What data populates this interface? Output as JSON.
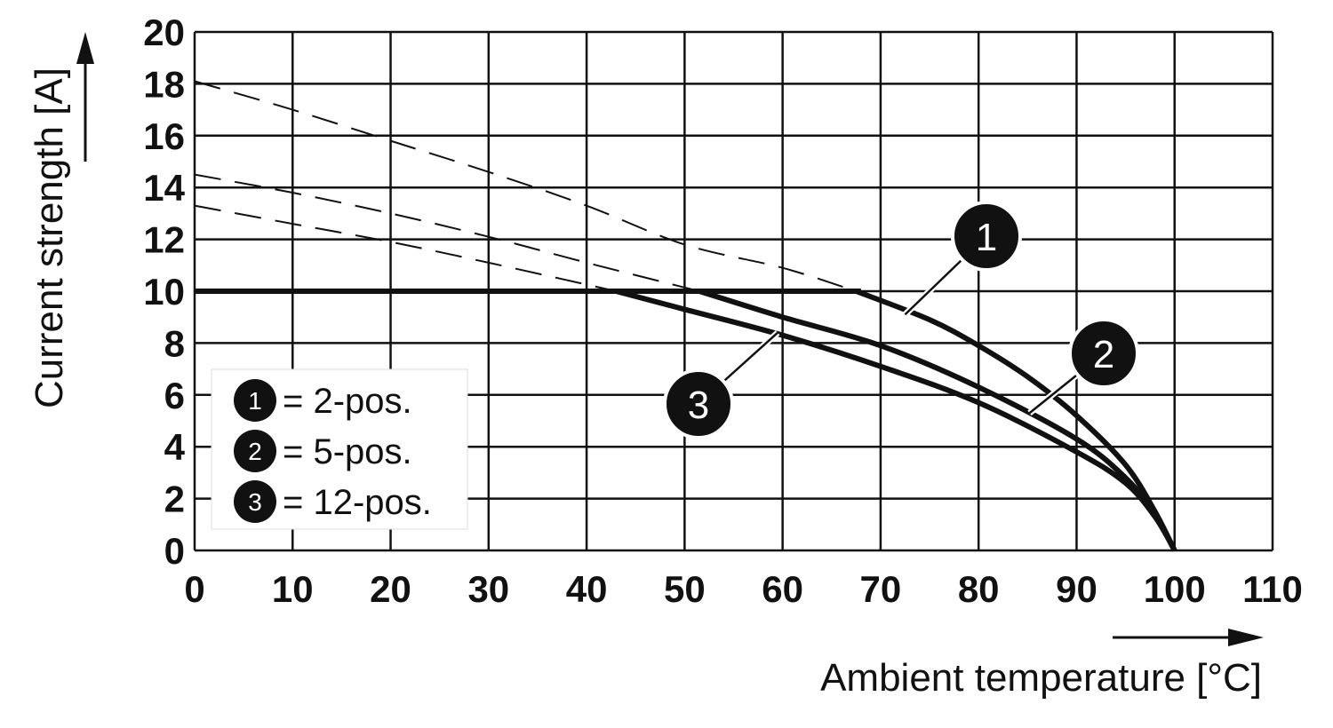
{
  "chart_data": {
    "type": "line",
    "title": "",
    "xlabel": "Ambient temperature [°C]",
    "ylabel": "Current strength [A]",
    "xlim": [
      0,
      110
    ],
    "ylim": [
      0,
      20
    ],
    "x_ticks": [
      "0",
      "10",
      "20",
      "30",
      "40",
      "50",
      "60",
      "70",
      "80",
      "90",
      "100",
      "110"
    ],
    "y_ticks": [
      "0",
      "2",
      "4",
      "6",
      "8",
      "10",
      "12",
      "14",
      "16",
      "18",
      "20"
    ],
    "grid": true,
    "legend_position": "bottom-left",
    "limit_line": {
      "y": 10
    },
    "series": [
      {
        "marker": "1",
        "name": "= 2-pos.",
        "points": [
          [
            0,
            18.1
          ],
          [
            10,
            17.0
          ],
          [
            20,
            15.8
          ],
          [
            30,
            14.6
          ],
          [
            40,
            13.3
          ],
          [
            50,
            11.8
          ],
          [
            60,
            10.9
          ],
          [
            67.5,
            10.0
          ],
          [
            75,
            8.9
          ],
          [
            80,
            7.9
          ],
          [
            85,
            6.7
          ],
          [
            90,
            5.2
          ],
          [
            95,
            3.3
          ],
          [
            98,
            1.5
          ],
          [
            100,
            0
          ]
        ]
      },
      {
        "marker": "2",
        "name": "= 5-pos.",
        "points": [
          [
            0,
            14.5
          ],
          [
            10,
            13.8
          ],
          [
            20,
            13.0
          ],
          [
            30,
            12.1
          ],
          [
            40,
            11.1
          ],
          [
            51.5,
            10.0
          ],
          [
            60,
            9.0
          ],
          [
            70,
            7.9
          ],
          [
            80,
            6.3
          ],
          [
            90,
            4.3
          ],
          [
            95,
            2.8
          ],
          [
            98,
            1.4
          ],
          [
            100,
            0
          ]
        ]
      },
      {
        "marker": "3",
        "name": "= 12-pos.",
        "points": [
          [
            0,
            13.3
          ],
          [
            10,
            12.6
          ],
          [
            20,
            11.9
          ],
          [
            30,
            11.1
          ],
          [
            43,
            10.0
          ],
          [
            50,
            9.3
          ],
          [
            60,
            8.3
          ],
          [
            70,
            7.1
          ],
          [
            80,
            5.7
          ],
          [
            90,
            3.8
          ],
          [
            95,
            2.6
          ],
          [
            98,
            1.3
          ],
          [
            100,
            0
          ]
        ]
      }
    ]
  }
}
